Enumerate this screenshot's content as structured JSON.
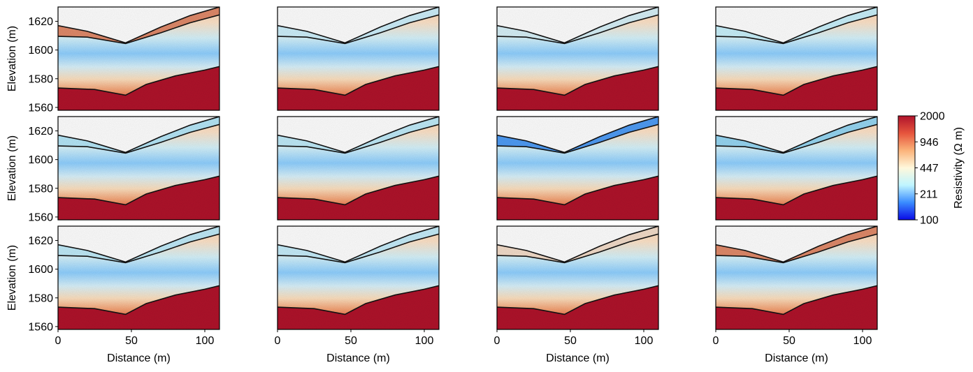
{
  "chart_data": {
    "type": "heatmap",
    "layout": {
      "rows": 3,
      "cols": 4
    },
    "xlabel": "Distance (m)",
    "ylabel": "Elevation (m)",
    "xlim": [
      0,
      110
    ],
    "ylim": [
      1558,
      1630
    ],
    "xticks": [
      0,
      50,
      100
    ],
    "yticks": [
      1560,
      1580,
      1600,
      1620
    ],
    "colorbar": {
      "label": "Resistivity (Ω m)",
      "ticks": [
        "2000",
        "946",
        "447",
        "211",
        "100"
      ],
      "range": [
        100,
        2000
      ],
      "scale": "log",
      "colors": [
        "#0a0ae6",
        "#3a8cff",
        "#bff5ff",
        "#fff8dc",
        "#fbb37a",
        "#e6553d",
        "#b0132b"
      ]
    },
    "boundaries": {
      "surface": {
        "x": [
          0,
          20,
          46,
          70,
          90,
          110
        ],
        "y": [
          1617,
          1613,
          1605,
          1616,
          1624,
          1630
        ]
      },
      "layer1": {
        "x": [
          0,
          20,
          46,
          70,
          90,
          110
        ],
        "y": [
          1609.5,
          1609,
          1604.5,
          1612,
          1619,
          1624.5
        ]
      },
      "bedrock": {
        "x": [
          0,
          25,
          46,
          60,
          80,
          100,
          110
        ],
        "y": [
          1573.5,
          1572.5,
          1568.5,
          1576,
          1582,
          1586,
          1588.5
        ]
      }
    },
    "panels": [
      {
        "row": 0,
        "col": 0,
        "top_layer": "#e08a6a"
      },
      {
        "row": 0,
        "col": 1,
        "top_layer": "#cdeffa"
      },
      {
        "row": 0,
        "col": 2,
        "top_layer": "#d6f0f7"
      },
      {
        "row": 0,
        "col": 3,
        "top_layer": "#c8f0fa"
      },
      {
        "row": 1,
        "col": 0,
        "top_layer": "#b5e6f7"
      },
      {
        "row": 1,
        "col": 1,
        "top_layer": "#bfeaf8"
      },
      {
        "row": 1,
        "col": 2,
        "top_layer": "#4f9cf5"
      },
      {
        "row": 1,
        "col": 3,
        "top_layer": "#96d6f2"
      },
      {
        "row": 2,
        "col": 0,
        "top_layer": "#bfeaf8"
      },
      {
        "row": 2,
        "col": 1,
        "top_layer": "#c5ecf9"
      },
      {
        "row": 2,
        "col": 2,
        "top_layer": "#f3dcc9"
      },
      {
        "row": 2,
        "col": 3,
        "top_layer": "#e08a6a"
      }
    ]
  }
}
